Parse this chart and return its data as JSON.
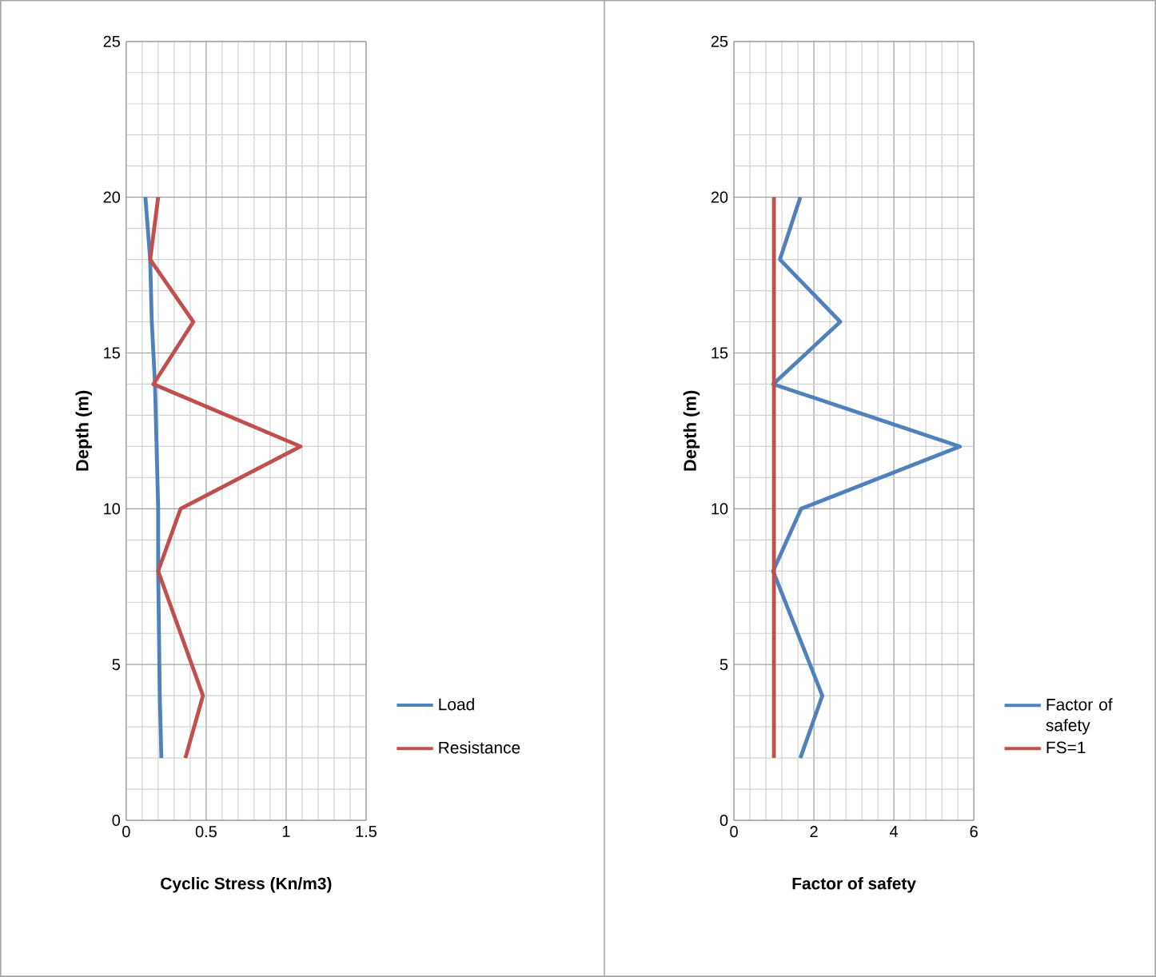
{
  "chart_data": [
    {
      "type": "line",
      "xlabel": "Cyclic Stress (Kn/m3)",
      "ylabel": "Depth (m)",
      "xlim": [
        0,
        1.5
      ],
      "xticks": [
        0,
        0.5,
        1,
        1.5
      ],
      "ylim": [
        0,
        25
      ],
      "yticks": [
        0,
        5,
        10,
        15,
        20,
        25
      ],
      "grid": true,
      "legend": "right",
      "series": [
        {
          "name": "Load",
          "color": "#4f81bd",
          "x": [
            0.22,
            0.21,
            0.2,
            0.2,
            0.19,
            0.18,
            0.16,
            0.15,
            0.12
          ],
          "values": [
            2,
            4,
            8,
            10,
            12,
            14,
            16,
            18,
            20
          ]
        },
        {
          "name": "Resistance",
          "color": "#c0504d",
          "x": [
            0.37,
            0.48,
            0.2,
            0.34,
            1.09,
            0.17,
            0.42,
            0.15,
            0.2
          ],
          "values": [
            2,
            4,
            8,
            10,
            12,
            14,
            16,
            18,
            20
          ]
        }
      ]
    },
    {
      "type": "line",
      "xlabel": "Factor of safety",
      "ylabel": "Depth (m)",
      "xlim": [
        0,
        6
      ],
      "xticks": [
        0,
        2,
        4,
        6
      ],
      "ylim": [
        0,
        25
      ],
      "yticks": [
        0,
        5,
        10,
        15,
        20,
        25
      ],
      "grid": true,
      "legend": "right",
      "series": [
        {
          "name": "Factor of safety",
          "color": "#4f81bd",
          "x": [
            1.66,
            2.21,
            0.98,
            1.68,
            5.65,
            0.98,
            2.66,
            1.15,
            1.66
          ],
          "values": [
            2,
            4,
            8,
            10,
            12,
            14,
            16,
            18,
            20
          ]
        },
        {
          "name": "FS=1",
          "color": "#c0504d",
          "x": [
            1,
            1
          ],
          "values": [
            2,
            20
          ]
        }
      ]
    }
  ]
}
